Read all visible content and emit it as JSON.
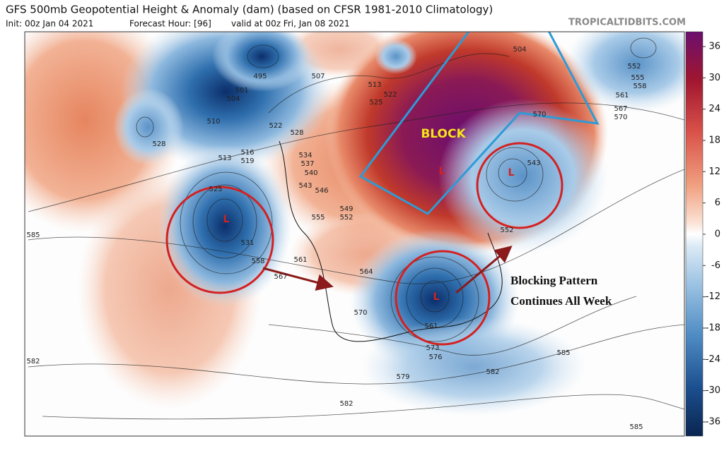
{
  "header": {
    "title": "GFS 500mb Geopotential Height & Anomaly (dam) (based on CFSR 1981-2010 Climatology)",
    "init": "Init: 00z Jan 04 2021",
    "forecast_hour": "Forecast Hour: [96]",
    "valid": "valid at 00z Fri, Jan 08 2021",
    "watermark": "TROPICALTIDBITS.COM"
  },
  "annotations": {
    "block": "BLOCK",
    "note_line1": "Blocking Pattern",
    "note_line2": "Continues All Week",
    "lows": [
      "L",
      "L",
      "L",
      "L"
    ]
  },
  "contour_labels": [
    "495",
    "501",
    "504",
    "507",
    "510",
    "513",
    "516",
    "519",
    "522",
    "528",
    "525",
    "531",
    "558",
    "585",
    "582",
    "582",
    "561",
    "567",
    "564",
    "570",
    "528",
    "534",
    "537",
    "540",
    "543",
    "546",
    "549",
    "552",
    "555",
    "513",
    "522",
    "525",
    "504",
    "552",
    "555",
    "558",
    "561",
    "567",
    "570",
    "570",
    "543",
    "552",
    "573",
    "576",
    "579",
    "585",
    "585",
    "582",
    "561"
  ],
  "colorbar": {
    "ticks": [
      "36",
      "30",
      "24",
      "18",
      "12",
      "6",
      "0",
      "-6",
      "-12",
      "-18",
      "-24",
      "-30",
      "-36"
    ]
  }
}
